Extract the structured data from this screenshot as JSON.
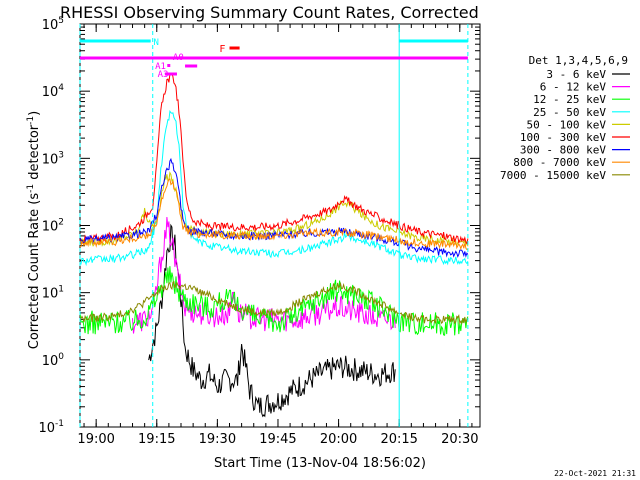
{
  "chart_data": {
    "type": "line",
    "title": "RHESSI Observing Summary Count Rates, Corrected",
    "xlabel": "Start Time (13-Nov-04 18:56:02)",
    "ylabel": "Corrected Count Rate (s",
    "ylabel_sup1": "-1",
    "ylabel_mid": " detector",
    "ylabel_sup2": "-1",
    "ylabel_end": ")",
    "date_stamp": "22-Oct-2021 21:31",
    "x_ticks": [
      {
        "label": "19:00",
        "min": 0
      },
      {
        "label": "19:15",
        "min": 15
      },
      {
        "label": "19:30",
        "min": 30
      },
      {
        "label": "19:45",
        "min": 45
      },
      {
        "label": "20:00",
        "min": 60
      },
      {
        "label": "20:15",
        "min": 75
      },
      {
        "label": "20:30",
        "min": 90
      }
    ],
    "xlim_minutes_after_19_00": [
      -4,
      95
    ],
    "y_scale": "log",
    "ylim": [
      0.1,
      100000
    ],
    "y_ticks": [
      {
        "label": "10",
        "exp": "-1",
        "value": 0.1
      },
      {
        "label": "10",
        "exp": "0",
        "value": 1
      },
      {
        "label": "10",
        "exp": "1",
        "value": 10
      },
      {
        "label": "10",
        "exp": "2",
        "value": 100
      },
      {
        "label": "10",
        "exp": "3",
        "value": 1000
      },
      {
        "label": "10",
        "exp": "4",
        "value": 10000
      },
      {
        "label": "10",
        "exp": "5",
        "value": 100000
      }
    ],
    "legend_title": "Det 1,3,4,5,6,9",
    "series": [
      {
        "name": "3 - 6 keV",
        "color": "#000000",
        "base": null,
        "points": [
          [
            13,
            1.0
          ],
          [
            15,
            3
          ],
          [
            16.5,
            10
          ],
          [
            17.5,
            40
          ],
          [
            18.5,
            70
          ],
          [
            19.5,
            50
          ],
          [
            21,
            8
          ],
          [
            22,
            1.5
          ],
          [
            24,
            0.7
          ],
          [
            26,
            0.5
          ],
          [
            28,
            0.6
          ],
          [
            30,
            0.4
          ],
          [
            32,
            0.5
          ],
          [
            35,
            0.5
          ],
          [
            36,
            1.6
          ],
          [
            37,
            0.8
          ],
          [
            38,
            0.35
          ],
          [
            40,
            0.2
          ],
          [
            45,
            0.25
          ],
          [
            50,
            0.4
          ],
          [
            55,
            0.6
          ],
          [
            60,
            0.8
          ],
          [
            65,
            0.7
          ],
          [
            70,
            0.6
          ],
          [
            74,
            0.7
          ]
        ]
      },
      {
        "name": "6 - 12 keV",
        "color": "#ff00ff",
        "base": null,
        "points": [
          [
            9,
            3.5
          ],
          [
            12,
            4
          ],
          [
            14,
            5
          ],
          [
            16,
            30
          ],
          [
            17.5,
            90
          ],
          [
            18.5,
            70
          ],
          [
            20,
            20
          ],
          [
            22,
            6
          ],
          [
            25,
            5
          ],
          [
            30,
            4.5
          ],
          [
            33,
            5
          ],
          [
            34,
            12
          ],
          [
            35,
            5
          ],
          [
            40,
            4
          ],
          [
            50,
            4
          ],
          [
            55,
            5
          ],
          [
            60,
            6
          ],
          [
            65,
            5
          ],
          [
            70,
            4
          ],
          [
            74,
            4
          ]
        ]
      },
      {
        "name": "12 - 25 keV",
        "color": "#00ff00",
        "base": 3.5,
        "points": [
          [
            -4,
            3.5
          ],
          [
            10,
            3.8
          ],
          [
            13,
            5
          ],
          [
            16,
            12
          ],
          [
            18,
            18
          ],
          [
            20,
            12
          ],
          [
            22,
            8
          ],
          [
            25,
            7
          ],
          [
            28,
            6
          ],
          [
            32,
            8
          ],
          [
            36,
            6
          ],
          [
            40,
            4
          ],
          [
            45,
            3.6
          ],
          [
            50,
            5
          ],
          [
            55,
            8
          ],
          [
            60,
            11
          ],
          [
            65,
            9
          ],
          [
            70,
            6
          ],
          [
            75,
            4
          ],
          [
            80,
            3.5
          ],
          [
            92,
            3.5
          ]
        ]
      },
      {
        "name": "25 - 50 keV",
        "color": "#00ffff",
        "base": 30,
        "points": [
          [
            -4,
            30
          ],
          [
            5,
            32
          ],
          [
            10,
            38
          ],
          [
            13,
            45
          ],
          [
            15,
            120
          ],
          [
            16,
            700
          ],
          [
            17.5,
            3500
          ],
          [
            18.5,
            4800
          ],
          [
            19.5,
            4200
          ],
          [
            20.5,
            1500
          ],
          [
            21.5,
            200
          ],
          [
            23,
            70
          ],
          [
            26,
            55
          ],
          [
            30,
            48
          ],
          [
            35,
            42
          ],
          [
            40,
            40
          ],
          [
            45,
            38
          ],
          [
            50,
            42
          ],
          [
            55,
            50
          ],
          [
            60,
            62
          ],
          [
            62,
            70
          ],
          [
            64,
            65
          ],
          [
            68,
            55
          ],
          [
            72,
            45
          ],
          [
            76,
            35
          ],
          [
            80,
            32
          ],
          [
            92,
            30
          ]
        ]
      },
      {
        "name": "50 - 100 keV",
        "color": "#cccc00",
        "base": 55,
        "points": [
          [
            -4,
            55
          ],
          [
            5,
            60
          ],
          [
            10,
            80
          ],
          [
            12,
            160
          ],
          [
            13.5,
            100
          ],
          [
            15,
            110
          ],
          [
            17,
            500
          ],
          [
            18.5,
            550
          ],
          [
            20,
            300
          ],
          [
            21.5,
            120
          ],
          [
            23,
            90
          ],
          [
            26,
            80
          ],
          [
            30,
            75
          ],
          [
            35,
            75
          ],
          [
            40,
            75
          ],
          [
            45,
            78
          ],
          [
            50,
            90
          ],
          [
            55,
            120
          ],
          [
            58,
            150
          ],
          [
            61,
            220
          ],
          [
            63,
            200
          ],
          [
            66,
            140
          ],
          [
            70,
            100
          ],
          [
            75,
            80
          ],
          [
            80,
            65
          ],
          [
            92,
            55
          ]
        ]
      },
      {
        "name": "100 - 300 keV",
        "color": "#ff0000",
        "base": 60,
        "points": [
          [
            -4,
            60
          ],
          [
            5,
            70
          ],
          [
            10,
            100
          ],
          [
            12,
            130
          ],
          [
            14,
            200
          ],
          [
            15,
            800
          ],
          [
            16,
            5000
          ],
          [
            17.5,
            14000
          ],
          [
            18.5,
            16500
          ],
          [
            19.5,
            14000
          ],
          [
            20.5,
            5000
          ],
          [
            21.5,
            1000
          ],
          [
            22.5,
            200
          ],
          [
            24,
            120
          ],
          [
            27,
            100
          ],
          [
            30,
            95
          ],
          [
            35,
            95
          ],
          [
            40,
            95
          ],
          [
            45,
            100
          ],
          [
            50,
            120
          ],
          [
            55,
            150
          ],
          [
            58,
            170
          ],
          [
            61,
            250
          ],
          [
            63,
            220
          ],
          [
            66,
            170
          ],
          [
            70,
            130
          ],
          [
            75,
            100
          ],
          [
            80,
            80
          ],
          [
            86,
            70
          ],
          [
            92,
            60
          ]
        ]
      },
      {
        "name": "300 - 800 keV",
        "color": "#0000ff",
        "base": 40,
        "points": [
          [
            -4,
            60
          ],
          [
            5,
            65
          ],
          [
            10,
            75
          ],
          [
            13,
            80
          ],
          [
            15,
            150
          ],
          [
            16,
            300
          ],
          [
            17.5,
            700
          ],
          [
            18.5,
            850
          ],
          [
            19.5,
            700
          ],
          [
            20.5,
            300
          ],
          [
            21.5,
            120
          ],
          [
            23,
            85
          ],
          [
            26,
            80
          ],
          [
            30,
            75
          ],
          [
            35,
            70
          ],
          [
            40,
            70
          ],
          [
            45,
            72
          ],
          [
            50,
            75
          ],
          [
            55,
            78
          ],
          [
            60,
            82
          ],
          [
            62,
            80
          ],
          [
            65,
            75
          ],
          [
            70,
            65
          ],
          [
            75,
            55
          ],
          [
            80,
            45
          ],
          [
            86,
            40
          ],
          [
            92,
            38
          ]
        ]
      },
      {
        "name": "800 - 7000 keV",
        "color": "#ff8800",
        "base": 50,
        "points": [
          [
            -4,
            55
          ],
          [
            5,
            58
          ],
          [
            10,
            65
          ],
          [
            13,
            70
          ],
          [
            15,
            110
          ],
          [
            16,
            200
          ],
          [
            17.5,
            400
          ],
          [
            18.5,
            450
          ],
          [
            19.5,
            380
          ],
          [
            20.5,
            200
          ],
          [
            21.5,
            100
          ],
          [
            23,
            80
          ],
          [
            26,
            75
          ],
          [
            30,
            72
          ],
          [
            35,
            70
          ],
          [
            40,
            70
          ],
          [
            45,
            72
          ],
          [
            50,
            75
          ],
          [
            55,
            78
          ],
          [
            60,
            80
          ],
          [
            62,
            78
          ],
          [
            65,
            75
          ],
          [
            70,
            68
          ],
          [
            75,
            60
          ],
          [
            80,
            55
          ],
          [
            92,
            50
          ]
        ]
      },
      {
        "name": "7000 - 15000 keV",
        "color": "#888800",
        "base": 4,
        "points": [
          [
            -4,
            4
          ],
          [
            5,
            4.5
          ],
          [
            10,
            6
          ],
          [
            13,
            8
          ],
          [
            15,
            10
          ],
          [
            17,
            12
          ],
          [
            20,
            13
          ],
          [
            23,
            12
          ],
          [
            26,
            10
          ],
          [
            30,
            8
          ],
          [
            35,
            6
          ],
          [
            40,
            5
          ],
          [
            45,
            5
          ],
          [
            50,
            7
          ],
          [
            55,
            10
          ],
          [
            60,
            13
          ],
          [
            62,
            12
          ],
          [
            65,
            10
          ],
          [
            70,
            7
          ],
          [
            75,
            5
          ],
          [
            80,
            4
          ],
          [
            92,
            4
          ]
        ]
      }
    ],
    "annotations": [
      {
        "label": "N",
        "color": "#00ffff"
      },
      {
        "label": "A1",
        "color": "#ff00ff"
      },
      {
        "label": "A0",
        "color": "#ff00ff"
      },
      {
        "label": "A3",
        "color": "#ff00ff"
      },
      {
        "label": "F",
        "color": "#ff0000"
      }
    ],
    "night_segments_minutes": [
      [
        -4,
        14
      ],
      [
        75,
        92
      ]
    ],
    "saa_lines_minutes": [
      -4,
      14,
      75,
      92
    ]
  }
}
